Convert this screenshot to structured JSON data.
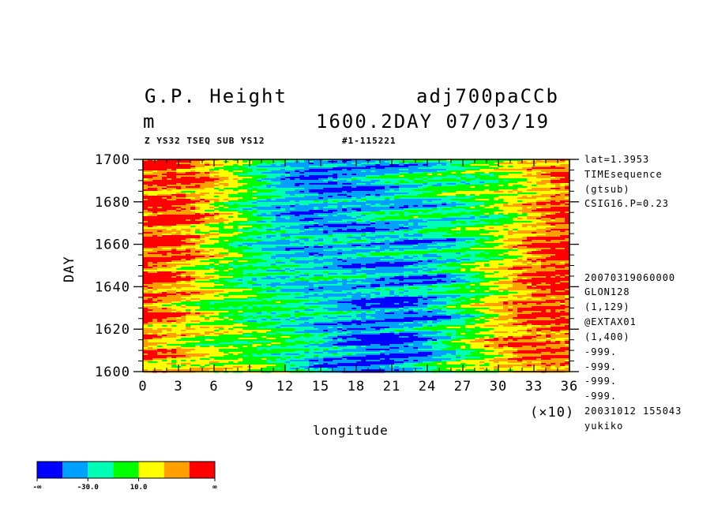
{
  "header": {
    "title_left": "G.P. Height",
    "title_right": "adj700paCCb",
    "unit": "m",
    "time_info": "1600.2DAY 07/03/19",
    "sub_left": "Z YS32 TSEQ SUB YS12",
    "sub_right": "#1-115221"
  },
  "side_info": {
    "top": [
      "lat=1.3953",
      "TIMEsequence",
      "(gtsub)",
      "CSIG16.P=0.23"
    ],
    "bottom": [
      "20070319060000",
      "GLON128",
      "(1,129)",
      "@EXTAX01",
      "(1,400)",
      "-999.",
      "-999.",
      "-999.",
      "-999.",
      "20031012 155043",
      "yukiko"
    ]
  },
  "chart_data": {
    "type": "heatmap",
    "title": "G.P. Height",
    "xlabel": "longitude",
    "ylabel": "DAY",
    "x_multiplier_label": "(×10)",
    "xlim": [
      0,
      36
    ],
    "ylim": [
      1600,
      1700
    ],
    "x_ticks": [
      "0",
      "3",
      "6",
      "9",
      "12",
      "15",
      "18",
      "21",
      "24",
      "27",
      "30",
      "33",
      "36"
    ],
    "y_ticks": [
      "1600",
      "1620",
      "1640",
      "1660",
      "1680",
      "1700"
    ],
    "colorbar": {
      "colors": [
        "#0000ff",
        "#00a0ff",
        "#00ffb4",
        "#00ff00",
        "#ffff00",
        "#ffa000",
        "#ff0000"
      ],
      "labels": [
        "-∞",
        "-30.0",
        "10.0",
        "∞"
      ]
    }
  }
}
